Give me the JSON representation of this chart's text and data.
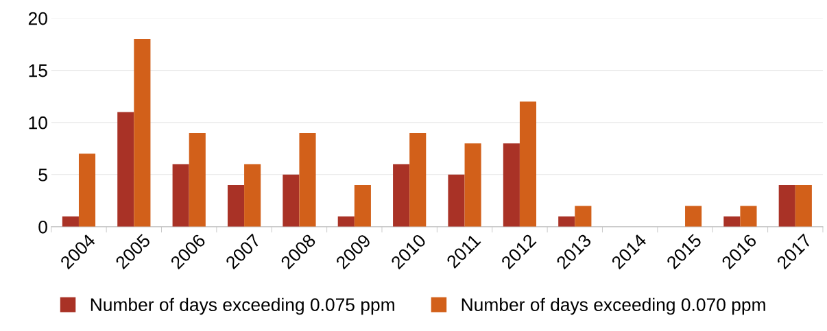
{
  "chart_data": {
    "type": "bar",
    "categories": [
      "2004",
      "2005",
      "2006",
      "2007",
      "2008",
      "2009",
      "2010",
      "2011",
      "2012",
      "2013",
      "2014",
      "2015",
      "2016",
      "2017"
    ],
    "series": [
      {
        "name": "Number of days exceeding 0.075 ppm",
        "color": "#a93226",
        "values": [
          1,
          11,
          6,
          4,
          5,
          1,
          6,
          5,
          8,
          1,
          0,
          0,
          1,
          4
        ]
      },
      {
        "name": "Number of days exceeding 0.070 ppm",
        "color": "#d2601a",
        "values": [
          7,
          18,
          9,
          6,
          9,
          4,
          9,
          8,
          12,
          2,
          0,
          2,
          2,
          4
        ]
      }
    ],
    "ylim": [
      0,
      20
    ],
    "yticks": [
      0,
      5,
      10,
      15,
      20
    ],
    "grid": "y",
    "legend": "bottom"
  }
}
